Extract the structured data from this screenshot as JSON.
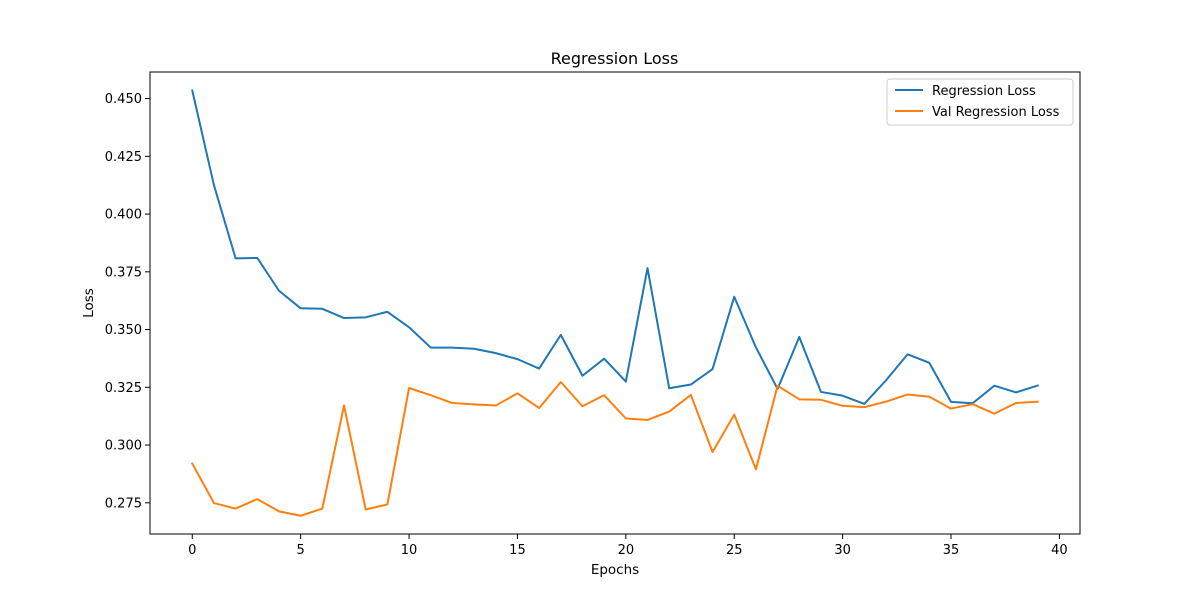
{
  "chart_data": {
    "type": "line",
    "title": "Regression Loss",
    "xlabel": "Epochs",
    "ylabel": "Loss",
    "xlim": [
      -1.95,
      40.95
    ],
    "ylim": [
      0.2615,
      0.4615
    ],
    "xticks": [
      0,
      5,
      10,
      15,
      20,
      25,
      30,
      35,
      40
    ],
    "xtick_labels": [
      "0",
      "5",
      "10",
      "15",
      "20",
      "25",
      "30",
      "35",
      "40"
    ],
    "yticks": [
      0.275,
      0.3,
      0.325,
      0.35,
      0.375,
      0.4,
      0.425,
      0.45
    ],
    "ytick_labels": [
      "0.275",
      "0.300",
      "0.325",
      "0.350",
      "0.375",
      "0.400",
      "0.425",
      "0.450"
    ],
    "grid": false,
    "legend_position": "top-right",
    "x": [
      0,
      1,
      2,
      3,
      4,
      5,
      6,
      7,
      8,
      9,
      10,
      11,
      12,
      13,
      14,
      15,
      16,
      17,
      18,
      19,
      20,
      21,
      22,
      23,
      24,
      25,
      26,
      27,
      28,
      29,
      30,
      31,
      32,
      33,
      34,
      35,
      36,
      37,
      38,
      39
    ],
    "series": [
      {
        "name": "Regression Loss",
        "color": "#1f77b4",
        "values": [
          0.4535,
          0.4125,
          0.3808,
          0.381,
          0.3668,
          0.3592,
          0.359,
          0.355,
          0.3553,
          0.3577,
          0.351,
          0.3422,
          0.3422,
          0.3417,
          0.3398,
          0.3372,
          0.3331,
          0.3477,
          0.33,
          0.3374,
          0.3275,
          0.3766,
          0.3246,
          0.3262,
          0.3329,
          0.3642,
          0.3423,
          0.3243,
          0.3468,
          0.323,
          0.3214,
          0.3178,
          0.328,
          0.3393,
          0.3356,
          0.3187,
          0.3181,
          0.3257,
          0.3228,
          0.3258
        ]
      },
      {
        "name": "Val Regression Loss",
        "color": "#ff7f0e",
        "values": [
          0.292,
          0.2749,
          0.2725,
          0.2766,
          0.2713,
          0.2694,
          0.2725,
          0.3171,
          0.2721,
          0.2743,
          0.3247,
          0.3216,
          0.3182,
          0.3176,
          0.3171,
          0.3224,
          0.316,
          0.3273,
          0.3168,
          0.3216,
          0.3115,
          0.3109,
          0.3145,
          0.3217,
          0.297,
          0.3132,
          0.2895,
          0.3257,
          0.3198,
          0.3196,
          0.317,
          0.3164,
          0.3188,
          0.3219,
          0.3209,
          0.3158,
          0.3177,
          0.3136,
          0.3182,
          0.3188
        ]
      }
    ]
  }
}
